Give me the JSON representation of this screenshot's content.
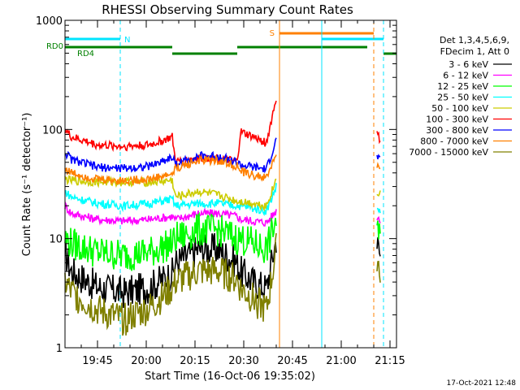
{
  "chart_data": {
    "type": "line",
    "title": "RHESSI Observing Summary Count Rates",
    "xlabel": "Start Time (16-Oct-06 19:35:02)",
    "ylabel": "Count Rate (s⁻¹ detector⁻¹)",
    "x_unit": "minutes",
    "xlim": [
      "19:35",
      "21:17"
    ],
    "ylim": [
      1,
      1000
    ],
    "y_scale": "log",
    "x_ticks": [
      "19:45",
      "20:00",
      "20:15",
      "20:30",
      "20:45",
      "21:00",
      "21:15"
    ],
    "y_ticks": [
      "1",
      "10",
      "100",
      "1000"
    ],
    "legend_position": "right",
    "legend_header": [
      "Det 1,3,4,5,6,9,",
      "FDecim 1, Att 0"
    ],
    "footer_stamp": "17-Oct-2021 12:48",
    "flag_lines": [
      {
        "label": "N",
        "color": "#00e5ff",
        "segments": [
          [
            "19:35",
            "19:52"
          ],
          [
            "20:54",
            "21:13"
          ]
        ]
      },
      {
        "label": "S",
        "color": "#ff8000",
        "segments": [
          [
            "20:41",
            "21:10"
          ]
        ]
      },
      {
        "label": "RD0",
        "color": "#008000",
        "segments": [
          [
            "19:35",
            "19:43"
          ]
        ]
      },
      {
        "label": "RD4",
        "color": "#008000",
        "segments": [
          [
            "19:43",
            "20:08"
          ],
          [
            "20:28",
            "21:08"
          ]
        ]
      },
      {
        "label": "",
        "color": "#008000",
        "segments": [
          [
            "20:08",
            "20:28"
          ],
          [
            "21:13",
            "21:17"
          ]
        ]
      }
    ],
    "vlines": [
      {
        "t": "19:35",
        "color": "#00e5ff",
        "style": "solid"
      },
      {
        "t": "19:52",
        "color": "#00e5ff",
        "style": "dashed"
      },
      {
        "t": "20:41",
        "color": "#ff8000",
        "style": "solid"
      },
      {
        "t": "20:54",
        "color": "#00e5ff",
        "style": "solid"
      },
      {
        "t": "21:10",
        "color": "#ff8000",
        "style": "dashed"
      },
      {
        "t": "21:13",
        "color": "#00e5ff",
        "style": "dashed"
      }
    ],
    "data_gaps": [
      [
        "20:40",
        "21:11"
      ]
    ],
    "series": [
      {
        "name": "3 - 6 keV",
        "color": "#000000",
        "x": [
          "19:35",
          "19:37",
          "19:45",
          "19:53",
          "20:01",
          "20:08",
          "20:09",
          "20:16",
          "20:22",
          "20:28",
          "20:29",
          "20:33",
          "20:37",
          "20:40",
          "21:11",
          "21:12"
        ],
        "y": [
          7.5,
          5,
          3.6,
          3.2,
          3.6,
          4.8,
          6,
          8,
          8,
          6,
          5,
          4,
          3.5,
          10,
          9,
          7
        ]
      },
      {
        "name": "6 - 12 keV",
        "color": "#ff00ff",
        "x": [
          "19:35",
          "19:37",
          "19:45",
          "19:53",
          "20:01",
          "20:08",
          "20:09",
          "20:16",
          "20:22",
          "20:28",
          "20:29",
          "20:33",
          "20:37",
          "20:40",
          "21:11",
          "21:12"
        ],
        "y": [
          20,
          17,
          15,
          14.5,
          15,
          16,
          15,
          17,
          17,
          16,
          15,
          14.5,
          14,
          18,
          16,
          15
        ]
      },
      {
        "name": "12 - 25 keV",
        "color": "#00ff00",
        "x": [
          "19:35",
          "19:37",
          "19:45",
          "19:53",
          "20:01",
          "20:08",
          "20:09",
          "20:16",
          "20:22",
          "20:28",
          "20:29",
          "20:33",
          "20:37",
          "20:40",
          "21:11",
          "21:12"
        ],
        "y": [
          10,
          9,
          7.5,
          7,
          7.5,
          9,
          10,
          12,
          12,
          10,
          10,
          9,
          8,
          15,
          11,
          10
        ]
      },
      {
        "name": "25 - 50 keV",
        "color": "#00ffff",
        "x": [
          "19:35",
          "19:37",
          "19:45",
          "19:53",
          "20:01",
          "20:08",
          "20:09",
          "20:16",
          "20:22",
          "20:28",
          "20:29",
          "20:33",
          "20:37",
          "20:40",
          "21:11",
          "21:12"
        ],
        "y": [
          27,
          24,
          21,
          20,
          21,
          23,
          20,
          21,
          21,
          20,
          20,
          19,
          18,
          30,
          19,
          18
        ]
      },
      {
        "name": "50 - 100 keV",
        "color": "#cccc00",
        "x": [
          "19:35",
          "19:37",
          "19:45",
          "19:53",
          "20:01",
          "20:08",
          "20:09",
          "20:16",
          "20:22",
          "20:28",
          "20:29",
          "20:33",
          "20:37",
          "20:40",
          "21:11",
          "21:12"
        ],
        "y": [
          35,
          34,
          33,
          33,
          33,
          34,
          24,
          27,
          25,
          22,
          22,
          21,
          20,
          35,
          27,
          26
        ]
      },
      {
        "name": "100 - 300 keV",
        "color": "#ff0000",
        "x": [
          "19:35",
          "19:37",
          "19:45",
          "19:53",
          "20:01",
          "20:08",
          "20:09",
          "20:16",
          "20:22",
          "20:28",
          "20:29",
          "20:33",
          "20:37",
          "20:40",
          "21:11",
          "21:12"
        ],
        "y": [
          100,
          85,
          72,
          70,
          72,
          85,
          50,
          55,
          55,
          50,
          95,
          85,
          75,
          195,
          90,
          80
        ]
      },
      {
        "name": "300 - 800 keV",
        "color": "#0000ff",
        "x": [
          "19:35",
          "19:37",
          "19:45",
          "19:53",
          "20:01",
          "20:08",
          "20:09",
          "20:16",
          "20:22",
          "20:28",
          "20:29",
          "20:33",
          "20:37",
          "20:40",
          "21:11",
          "21:12"
        ],
        "y": [
          62,
          53,
          45,
          44,
          46,
          56,
          48,
          57,
          57,
          50,
          47,
          45,
          43,
          80,
          57,
          52
        ]
      },
      {
        "name": "800 - 7000 keV",
        "color": "#ff8000",
        "x": [
          "19:35",
          "19:37",
          "19:45",
          "19:53",
          "20:01",
          "20:08",
          "20:09",
          "20:16",
          "20:22",
          "20:28",
          "20:29",
          "20:33",
          "20:37",
          "20:40",
          "21:11",
          "21:12"
        ],
        "y": [
          44,
          40,
          35,
          34,
          35,
          39,
          44,
          52,
          52,
          46,
          41,
          38,
          36,
          60,
          46,
          43
        ]
      },
      {
        "name": "7000 - 15000 keV",
        "color": "#808000",
        "x": [
          "19:35",
          "19:37",
          "19:45",
          "19:53",
          "20:01",
          "20:08",
          "20:09",
          "20:16",
          "20:22",
          "20:28",
          "20:29",
          "20:33",
          "20:37",
          "20:40",
          "21:11",
          "21:12"
        ],
        "y": [
          4,
          3.2,
          2.2,
          1.8,
          2.3,
          3.5,
          4,
          5,
          5,
          4.2,
          3.5,
          2.8,
          2.2,
          8,
          7,
          5
        ]
      }
    ]
  }
}
